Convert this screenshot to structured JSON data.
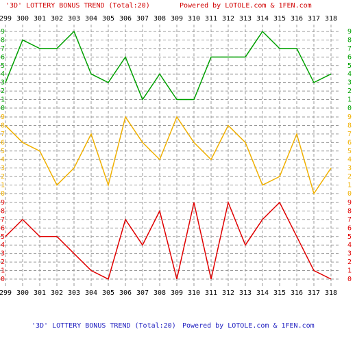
{
  "chart_data": {
    "type": "line",
    "title": "'3D' LOTTERY BONUS TREND (Total:20)",
    "subtitle": "Powered by LOTOLE.com & 1FEN.com",
    "categories": [
      "299",
      "300",
      "301",
      "302",
      "303",
      "304",
      "305",
      "306",
      "307",
      "308",
      "309",
      "310",
      "311",
      "312",
      "313",
      "314",
      "315",
      "316",
      "317",
      "318"
    ],
    "ylim": [
      0,
      9
    ],
    "yticks": [
      0,
      1,
      2,
      3,
      4,
      5,
      6,
      7,
      8,
      9
    ],
    "grid": true,
    "series": [
      {
        "color": "#00a000",
        "values": [
          3,
          8,
          7,
          7,
          9,
          4,
          3,
          6,
          1,
          4,
          1,
          1,
          6,
          6,
          6,
          9,
          7,
          7,
          3,
          4
        ]
      },
      {
        "color": "#f0b000",
        "values": [
          8,
          6,
          5,
          1,
          3,
          7,
          1,
          9,
          6,
          4,
          9,
          6,
          4,
          8,
          6,
          1,
          2,
          7,
          0,
          3
        ]
      },
      {
        "color": "#e00000",
        "values": [
          5,
          7,
          5,
          5,
          3,
          1,
          0,
          7,
          4,
          8,
          0,
          9,
          0,
          9,
          4,
          7,
          9,
          5,
          1,
          0
        ]
      }
    ]
  }
}
